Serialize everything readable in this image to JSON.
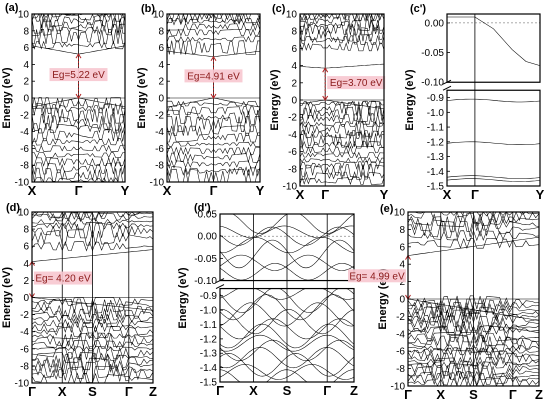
{
  "chart_data": [
    {
      "id": "a",
      "type": "line",
      "panel_label": "(a)",
      "ylabel": "Energy (eV)",
      "ylim": [
        -10,
        10
      ],
      "yticks": [
        10,
        8,
        6,
        4,
        2,
        0,
        -2,
        -4,
        -6,
        -8,
        -10
      ],
      "kpoints": [
        "X",
        "Γ",
        "Y"
      ],
      "kpoint_positions": [
        0,
        0.5,
        1
      ],
      "gap_label": "Eg=5.22 eV",
      "gap": [
        0,
        5.22
      ],
      "conduction_bands_at_gamma": [
        5.22,
        6.3,
        7.3,
        8.1,
        8.6,
        9.2,
        9.6,
        10
      ],
      "valence_bands_at_gamma": [
        0,
        -0.6,
        -1.3,
        -2.1,
        -2.9,
        -3.6,
        -4.4,
        -5.2,
        -6.0,
        -6.8,
        -7.6,
        -8.4,
        -9.2,
        -9.8
      ]
    },
    {
      "id": "b",
      "type": "line",
      "panel_label": "(b)",
      "ylabel": "Energy (eV)",
      "ylim": [
        -10,
        10
      ],
      "yticks": [
        10,
        8,
        6,
        4,
        2,
        0,
        -2,
        -4,
        -6,
        -8,
        -10
      ],
      "kpoints": [
        "X",
        "Γ",
        "Y"
      ],
      "kpoint_positions": [
        0,
        0.5,
        1
      ],
      "gap_label": "Eg=4.91 eV",
      "gap": [
        0,
        4.91
      ],
      "conduction_bands_at_gamma": [
        4.91,
        6.0,
        7.0,
        7.8,
        8.5,
        9.1,
        9.6,
        10
      ],
      "valence_bands_at_gamma": [
        0,
        -0.7,
        -1.5,
        -2.3,
        -3.1,
        -3.9,
        -4.7,
        -5.5,
        -6.3,
        -7.1,
        -7.9,
        -8.7,
        -9.4
      ]
    },
    {
      "id": "c",
      "type": "line",
      "panel_label": "(c)",
      "ylabel": "Energy (eV)",
      "ylim": [
        -10,
        10
      ],
      "yticks": [
        10,
        8,
        6,
        4,
        2,
        0,
        -2,
        -4,
        -6,
        -8,
        -10
      ],
      "kpoints": [
        "X",
        "Γ",
        "Y"
      ],
      "kpoint_positions": [
        0,
        0.3,
        1
      ],
      "gap_label": "Eg=3.70 eV",
      "gap": [
        0,
        3.7
      ],
      "conduction_bands_at_gamma": [
        3.7,
        6.2,
        7.0,
        7.6,
        8.2,
        8.7,
        9.2,
        9.7,
        10
      ],
      "valence_bands_at_gamma": [
        0,
        -0.4,
        -1.0,
        -1.6,
        -2.2,
        -2.8,
        -3.4,
        -4.0,
        -4.6,
        -5.2,
        -5.8,
        -6.4,
        -7.0,
        -7.6,
        -8.2,
        -8.8,
        -9.4
      ]
    },
    {
      "id": "c_prime",
      "type": "line",
      "panel_label": "(c')",
      "ylabel": "Energy (eV)",
      "broken_axis": true,
      "upper_ylim": [
        -0.1,
        0.015
      ],
      "upper_yticks": [
        0.0,
        -0.05,
        -0.1
      ],
      "upper_tick_labels": [
        "0.00",
        "-0.05",
        "-0.10"
      ],
      "lower_ylim": [
        -1.5,
        -0.85
      ],
      "lower_yticks": [
        -0.9,
        -1.0,
        -1.1,
        -1.2,
        -1.3,
        -1.4,
        -1.5
      ],
      "lower_tick_labels": [
        "-0.9",
        "-1.0",
        "-1.1",
        "-1.2",
        "-1.3",
        "-1.4",
        "-1.5"
      ],
      "kpoints": [
        "X",
        "Γ",
        "Y"
      ],
      "kpoint_positions": [
        0,
        0.3,
        1
      ],
      "upper_band": {
        "x": [
          0,
          0.3,
          0.5,
          0.7,
          0.85,
          1.0
        ],
        "y": [
          0.01,
          0.01,
          -0.01,
          -0.045,
          -0.065,
          -0.072
        ]
      },
      "lower_bands_flat": [
        -0.92,
        -1.21,
        -1.44,
        -1.46
      ]
    },
    {
      "id": "d",
      "type": "line",
      "panel_label": "(d)",
      "ylabel": "Energy (eV)",
      "ylim": [
        -10,
        10
      ],
      "yticks": [
        10,
        8,
        6,
        4,
        2,
        0,
        -2,
        -4,
        -6,
        -8,
        -10
      ],
      "kpoints": [
        "Γ",
        "X",
        "S",
        "Γ",
        "Z"
      ],
      "kpoint_positions": [
        0,
        0.25,
        0.5,
        0.8,
        1
      ],
      "gap_label": "Eg= 4.20 eV",
      "gap": [
        0,
        4.2
      ],
      "conduction_bands_at_gamma": [
        4.2,
        6.0,
        7.0,
        7.8,
        8.4,
        8.9,
        9.4,
        9.8,
        10
      ],
      "valence_bands_at_gamma": [
        0,
        -0.5,
        -1.0,
        -1.5,
        -2.0,
        -2.5,
        -3.0,
        -3.5,
        -4.0,
        -4.5,
        -5.0,
        -5.5,
        -6.0,
        -6.5,
        -7.0,
        -7.5,
        -8.0,
        -8.5,
        -9.0,
        -9.5
      ]
    },
    {
      "id": "d_prime",
      "type": "line",
      "panel_label": "(d')",
      "ylabel": "Energy (eV)",
      "broken_axis": true,
      "upper_ylim": [
        -0.1,
        0.05
      ],
      "upper_yticks": [
        0.05,
        0.0,
        -0.05,
        -0.1
      ],
      "upper_tick_labels": [
        "0.05",
        "0.00",
        "-0.05",
        "-0.10"
      ],
      "lower_ylim": [
        -1.5,
        -0.85
      ],
      "lower_yticks": [
        -0.9,
        -1.0,
        -1.1,
        -1.2,
        -1.3,
        -1.4,
        -1.5
      ],
      "lower_tick_labels": [
        "-0.9",
        "-1.0",
        "-1.1",
        "-1.2",
        "-1.3",
        "-1.4",
        "-1.5"
      ],
      "kpoints": [
        "Γ",
        "X",
        "S",
        "Γ",
        "Z"
      ],
      "kpoint_positions": [
        0,
        0.25,
        0.5,
        0.8,
        1
      ],
      "upper_bands_at_gamma": [
        0.03,
        0.01,
        0.0,
        -0.02,
        -0.04,
        -0.06,
        -0.08
      ],
      "lower_bands_at_gamma": [
        -0.88,
        -0.93,
        -0.98,
        -1.03,
        -1.08,
        -1.13,
        -1.18,
        -1.23,
        -1.28,
        -1.33,
        -1.38,
        -1.43,
        -1.48
      ]
    },
    {
      "id": "e",
      "type": "line",
      "panel_label": "(e)",
      "ylabel": "Energy (eV)",
      "ylim": [
        -10,
        10
      ],
      "yticks": [
        10,
        8,
        6,
        4,
        2,
        0,
        -2,
        -4,
        -6,
        -8,
        -10
      ],
      "kpoints": [
        "Γ",
        "X",
        "S",
        "Γ",
        "Z"
      ],
      "kpoint_positions": [
        0,
        0.25,
        0.5,
        0.8,
        1
      ],
      "gap_label": "Eg= 4.99 eV",
      "gap": [
        0,
        4.99
      ],
      "conduction_bands_at_gamma": [
        4.99,
        6.4,
        7.3,
        8.0,
        8.6,
        9.1,
        9.6,
        10
      ],
      "valence_bands_at_gamma": [
        0,
        -0.4,
        -0.8,
        -1.2,
        -1.6,
        -2.0,
        -2.4,
        -2.8,
        -3.2,
        -3.6,
        -4.0,
        -4.4,
        -4.8,
        -5.2,
        -5.6,
        -6.0,
        -6.4,
        -6.8,
        -7.2,
        -7.6,
        -8.0,
        -8.4,
        -8.8,
        -9.2,
        -9.6
      ]
    }
  ]
}
